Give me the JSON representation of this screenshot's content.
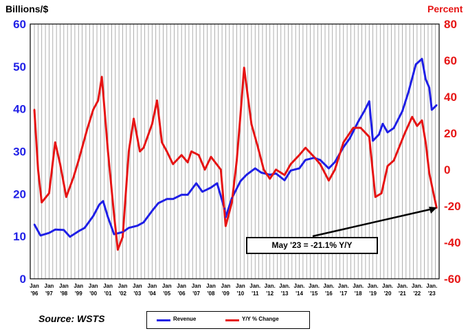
{
  "chart_data": {
    "type": "line",
    "left_axis_title": "Billions/$",
    "right_axis_title": "Percent",
    "left_ylim": [
      0,
      60
    ],
    "right_ylim": [
      -60,
      80
    ],
    "left_ticks": [
      "0",
      "10",
      "20",
      "30",
      "40",
      "50",
      "60"
    ],
    "right_ticks": [
      "-60",
      "-40",
      "-20",
      "0",
      "20",
      "40",
      "60",
      "80"
    ],
    "x_labels": [
      {
        "month": "Jan",
        "year": "'96"
      },
      {
        "month": "Jan",
        "year": "'97"
      },
      {
        "month": "Jan",
        "year": "'98"
      },
      {
        "month": "Jan",
        "year": "'99"
      },
      {
        "month": "Jan",
        "year": "'00"
      },
      {
        "month": "Jan",
        "year": "'01"
      },
      {
        "month": "Jan",
        "year": "'02"
      },
      {
        "month": "Jan",
        "year": "'03"
      },
      {
        "month": "Jan",
        "year": "'04"
      },
      {
        "month": "Jan",
        "year": "'05"
      },
      {
        "month": "Jan",
        "year": "'06"
      },
      {
        "month": "Jan",
        "year": "'07"
      },
      {
        "month": "Jan",
        "year": "'08"
      },
      {
        "month": "Jan",
        "year": "'09"
      },
      {
        "month": "Jan",
        "year": "'10"
      },
      {
        "month": "Jan.",
        "year": "'11"
      },
      {
        "month": "Jan.",
        "year": "'12"
      },
      {
        "month": "Jan.",
        "year": "'13"
      },
      {
        "month": "Jan.",
        "year": "'14"
      },
      {
        "month": "Jan.",
        "year": "'15"
      },
      {
        "month": "Jan.",
        "year": "'16"
      },
      {
        "month": "Jan.",
        "year": "'17"
      },
      {
        "month": "Jan.",
        "year": "'18"
      },
      {
        "month": "Jan.",
        "year": "'19"
      },
      {
        "month": "Jan.",
        "year": "'20"
      },
      {
        "month": "Jan.",
        "year": "'21"
      },
      {
        "month": "Jan.",
        "year": "'22"
      },
      {
        "month": "Jan.",
        "year": "'23"
      }
    ],
    "grid": "vertical",
    "series": [
      {
        "name": "Revenue",
        "axis": "left",
        "color": "#1f1fe6",
        "points": [
          [
            "1996-01",
            12.8
          ],
          [
            "1996-06",
            10.2
          ],
          [
            "1997-01",
            10.8
          ],
          [
            "1997-06",
            11.6
          ],
          [
            "1998-01",
            11.5
          ],
          [
            "1998-06",
            9.9
          ],
          [
            "1999-01",
            11.2
          ],
          [
            "1999-06",
            12.0
          ],
          [
            "2000-01",
            14.8
          ],
          [
            "2000-06",
            17.5
          ],
          [
            "2000-09",
            18.3
          ],
          [
            "2001-01",
            14.5
          ],
          [
            "2001-06",
            10.5
          ],
          [
            "2002-01",
            11.0
          ],
          [
            "2002-06",
            12.0
          ],
          [
            "2003-01",
            12.5
          ],
          [
            "2003-06",
            13.3
          ],
          [
            "2004-01",
            16.0
          ],
          [
            "2004-06",
            17.8
          ],
          [
            "2005-01",
            18.8
          ],
          [
            "2005-06",
            18.8
          ],
          [
            "2006-01",
            19.8
          ],
          [
            "2006-06",
            19.8
          ],
          [
            "2007-01",
            22.5
          ],
          [
            "2007-06",
            20.5
          ],
          [
            "2008-01",
            21.5
          ],
          [
            "2008-06",
            22.5
          ],
          [
            "2008-12",
            16.5
          ],
          [
            "2009-01",
            14.5
          ],
          [
            "2009-06",
            19.0
          ],
          [
            "2010-01",
            23.0
          ],
          [
            "2010-06",
            24.5
          ],
          [
            "2011-01",
            26.0
          ],
          [
            "2011-06",
            25.0
          ],
          [
            "2012-01",
            24.5
          ],
          [
            "2012-06",
            24.8
          ],
          [
            "2013-01",
            23.2
          ],
          [
            "2013-06",
            25.5
          ],
          [
            "2014-01",
            26.0
          ],
          [
            "2014-06",
            28.0
          ],
          [
            "2015-01",
            28.5
          ],
          [
            "2015-06",
            28.0
          ],
          [
            "2016-01",
            26.0
          ],
          [
            "2016-06",
            27.5
          ],
          [
            "2017-01",
            31.0
          ],
          [
            "2017-06",
            33.0
          ],
          [
            "2018-01",
            37.0
          ],
          [
            "2018-06",
            39.5
          ],
          [
            "2018-10",
            41.8
          ],
          [
            "2019-01",
            32.5
          ],
          [
            "2019-06",
            34.0
          ],
          [
            "2019-09",
            36.5
          ],
          [
            "2020-01",
            34.5
          ],
          [
            "2020-06",
            35.5
          ],
          [
            "2021-01",
            39.5
          ],
          [
            "2021-06",
            44.0
          ],
          [
            "2021-12",
            50.5
          ],
          [
            "2022-05",
            51.8
          ],
          [
            "2022-08",
            47.0
          ],
          [
            "2022-11",
            45.0
          ],
          [
            "2023-01",
            39.8
          ],
          [
            "2023-05",
            40.9
          ]
        ]
      },
      {
        "name": "Y/Y % Change",
        "axis": "right",
        "color": "#e61414",
        "points": [
          [
            "1996-01",
            33
          ],
          [
            "1996-04",
            0
          ],
          [
            "1996-07",
            -18
          ],
          [
            "1997-01",
            -13
          ],
          [
            "1997-06",
            15
          ],
          [
            "1997-10",
            3
          ],
          [
            "1998-03",
            -15
          ],
          [
            "1998-09",
            -4
          ],
          [
            "1999-01",
            5
          ],
          [
            "1999-08",
            22
          ],
          [
            "2000-01",
            33
          ],
          [
            "2000-05",
            38
          ],
          [
            "2000-08",
            51
          ],
          [
            "2001-01",
            10
          ],
          [
            "2001-06",
            -25
          ],
          [
            "2001-09",
            -44
          ],
          [
            "2002-01",
            -37
          ],
          [
            "2002-06",
            10
          ],
          [
            "2002-10",
            28
          ],
          [
            "2003-03",
            10
          ],
          [
            "2003-06",
            12
          ],
          [
            "2004-01",
            25
          ],
          [
            "2004-05",
            38
          ],
          [
            "2004-09",
            15
          ],
          [
            "2005-01",
            10
          ],
          [
            "2005-06",
            3
          ],
          [
            "2006-01",
            8
          ],
          [
            "2006-06",
            4
          ],
          [
            "2006-09",
            10
          ],
          [
            "2007-03",
            8
          ],
          [
            "2007-08",
            0
          ],
          [
            "2008-01",
            7
          ],
          [
            "2008-09",
            0
          ],
          [
            "2009-01",
            -31
          ],
          [
            "2009-06",
            -18
          ],
          [
            "2009-10",
            5
          ],
          [
            "2010-01",
            30
          ],
          [
            "2010-04",
            56
          ],
          [
            "2010-10",
            25
          ],
          [
            "2011-03",
            13
          ],
          [
            "2011-08",
            0
          ],
          [
            "2012-01",
            -5
          ],
          [
            "2012-06",
            0
          ],
          [
            "2013-01",
            -3
          ],
          [
            "2013-06",
            3
          ],
          [
            "2014-01",
            8
          ],
          [
            "2014-06",
            12
          ],
          [
            "2015-01",
            7
          ],
          [
            "2015-06",
            3
          ],
          [
            "2016-01",
            -6
          ],
          [
            "2016-06",
            0
          ],
          [
            "2017-01",
            15
          ],
          [
            "2017-09",
            23
          ],
          [
            "2018-03",
            23
          ],
          [
            "2018-10",
            18
          ],
          [
            "2019-03",
            -15
          ],
          [
            "2019-08",
            -13
          ],
          [
            "2020-01",
            2
          ],
          [
            "2020-06",
            5
          ],
          [
            "2021-03",
            20
          ],
          [
            "2021-09",
            29
          ],
          [
            "2022-01",
            24
          ],
          [
            "2022-05",
            27
          ],
          [
            "2022-08",
            15
          ],
          [
            "2022-11",
            -2
          ],
          [
            "2023-03",
            -15
          ],
          [
            "2023-05",
            -21.1
          ]
        ]
      }
    ],
    "annotation": "May '23 = -21.1% Y/Y",
    "source": "Source: WSTS",
    "legend_position": "bottom-center"
  }
}
